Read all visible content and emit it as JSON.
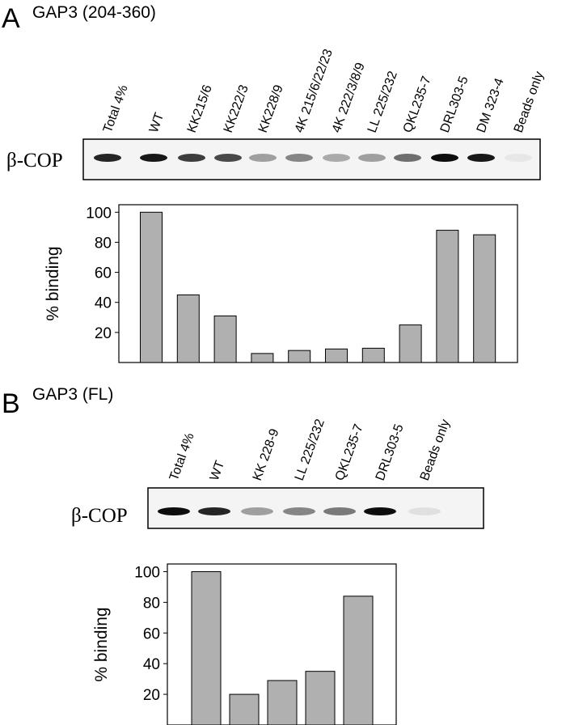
{
  "panels": [
    {
      "letter": "A",
      "title": "GAP3 (204-360)",
      "blot_label": "β-COP",
      "lanes": [
        "Total 4%",
        "WT",
        "KK215/6",
        "KK222/3",
        "KK228/9",
        "4K 215/6/22/23",
        "4K 222/3/8/9",
        "LL 225/232",
        "QKL235-7",
        "DRL303-5",
        "DM 323-4",
        "Beads only"
      ]
    },
    {
      "letter": "B",
      "title": "GAP3 (FL)",
      "blot_label": "β-COP",
      "lanes": [
        "Total 4%",
        "WT",
        "KK 228-9",
        "LL 225/232",
        "QKL235-7",
        "DRL303-5",
        "Beads only"
      ]
    }
  ],
  "chart_data": [
    {
      "type": "bar",
      "ylabel": "% binding",
      "values": [
        100,
        45,
        31,
        6,
        8,
        9,
        9.5,
        25,
        88,
        85
      ],
      "color": "#b0b0b0",
      "ylim": [
        0,
        105
      ],
      "yticks": [
        20,
        40,
        60,
        80,
        100
      ],
      "grid": false
    },
    {
      "type": "bar",
      "ylabel": "% binding",
      "values": [
        100,
        20,
        29,
        35,
        84
      ],
      "color": "#b0b0b0",
      "ylim": [
        0,
        105
      ],
      "yticks": [
        20,
        40,
        60,
        80,
        100
      ],
      "grid": false
    }
  ]
}
